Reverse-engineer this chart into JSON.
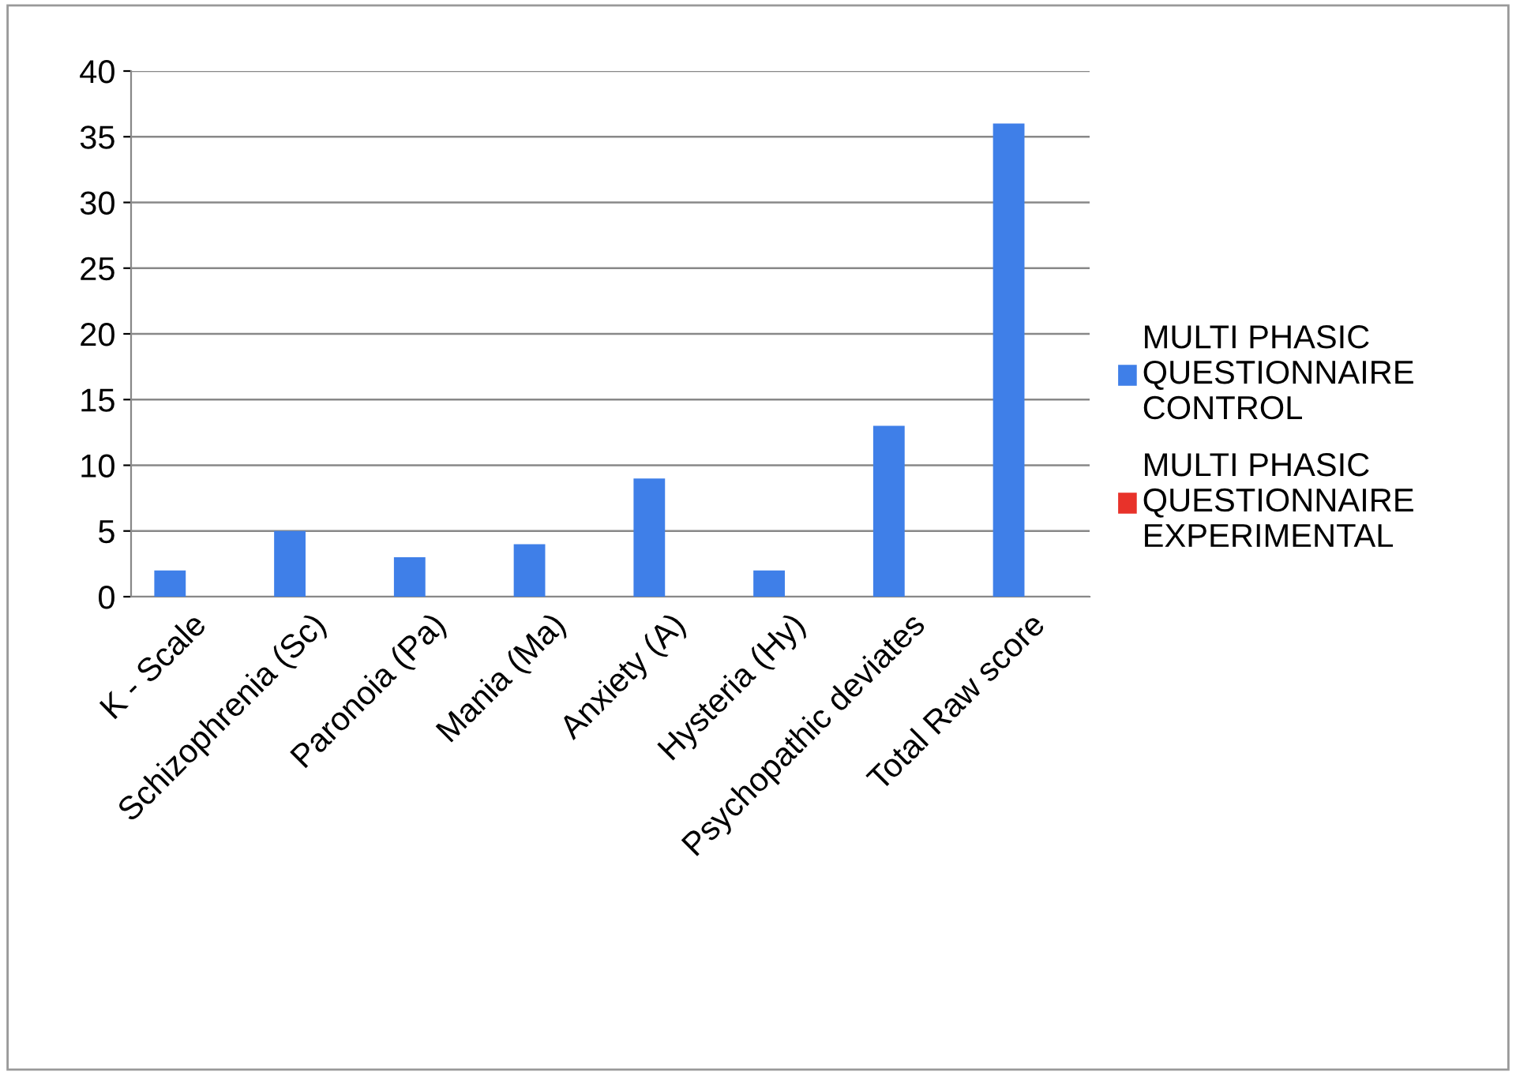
{
  "chart_data": {
    "type": "bar",
    "categories": [
      "K - Scale",
      "Schizophrenia (Sc)",
      "Paronoia (Pa)",
      "Mania (Ma)",
      "Anxiety (A)",
      "Hysteria (Hy)",
      "Psychopathic deviates",
      "Total Raw score"
    ],
    "series": [
      {
        "name": "MULTI PHASIC QUESTIONNAIRE CONTROL",
        "color": "#3f7fe8",
        "values": [
          2,
          5,
          3,
          4,
          9,
          2,
          13,
          36
        ]
      },
      {
        "name": "MULTI PHASIC QUESTIONNAIRE EXPERIMENTAL",
        "color": "#e8322a",
        "values": [
          null,
          null,
          null,
          null,
          null,
          null,
          null,
          null
        ]
      }
    ],
    "ylim": [
      0,
      40
    ],
    "yticks": [
      0,
      5,
      10,
      15,
      20,
      25,
      30,
      35,
      40
    ],
    "grid": "y",
    "legend": "right"
  }
}
